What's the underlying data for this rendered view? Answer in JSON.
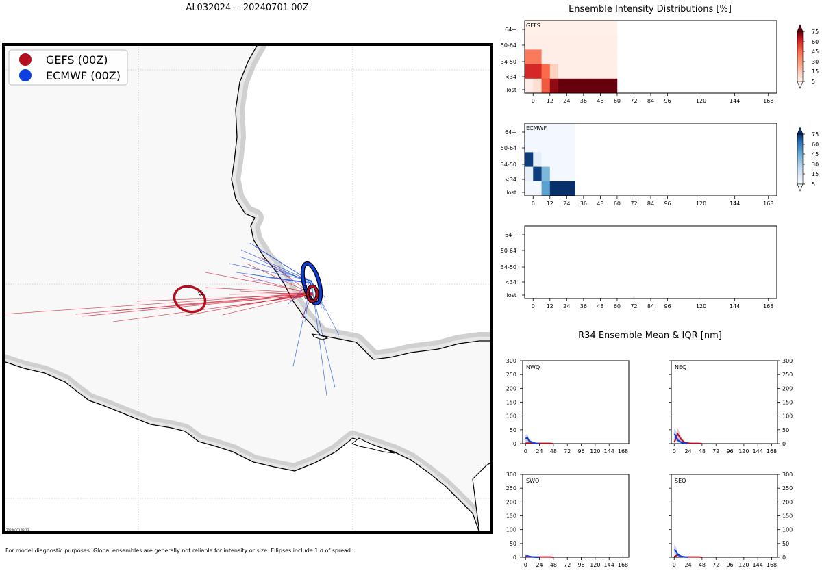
{
  "title": "AL032024 -- 20240701 00Z",
  "footnote": "For model diagnostic purposes. Global ensembles are generally not reliable for intensity or size. Ellipses include 1 σ of spread.",
  "stamp": "20240701 08:13",
  "map": {
    "legend": [
      {
        "label": "GEFS (00Z)",
        "color": "#b2101f"
      },
      {
        "label": "ECMWF (00Z)",
        "color": "#0b3fe0"
      }
    ],
    "ellipse_labels": [
      "12",
      "0",
      "0"
    ],
    "land_color": "#f8f8f8",
    "coast_halo_color": "#d0d0d0"
  },
  "intensity": {
    "title": "Ensemble Intensity Distributions [%]",
    "y_labels": [
      "64+",
      "50-64",
      "34-50",
      "<34",
      "lost"
    ],
    "x_ticks": [
      0,
      12,
      24,
      36,
      48,
      60,
      72,
      84,
      96,
      120,
      144,
      168
    ],
    "colorbar_ticks": [
      5,
      15,
      30,
      45,
      60,
      75
    ],
    "panels": [
      {
        "name": "GEFS",
        "cmap": "reds",
        "leads": [
          0,
          6,
          12,
          18,
          24,
          30,
          36,
          42,
          48,
          54
        ],
        "values": [
          [
            2,
            2,
            2,
            2,
            2,
            2,
            2,
            2,
            2,
            2
          ],
          [
            3,
            3,
            3,
            3,
            3,
            3,
            3,
            3,
            3,
            3
          ],
          [
            45,
            45,
            3,
            3,
            3,
            3,
            3,
            3,
            3,
            3
          ],
          [
            70,
            70,
            50,
            15,
            3,
            3,
            3,
            3,
            3,
            3
          ],
          [
            3,
            10,
            55,
            90,
            100,
            100,
            100,
            100,
            100,
            100
          ]
        ]
      },
      {
        "name": "ECMWF",
        "cmap": "blues",
        "leads": [
          0,
          6,
          12,
          18,
          24
        ],
        "values": [
          [
            2,
            2,
            2,
            2,
            2
          ],
          [
            2,
            2,
            2,
            2,
            2
          ],
          [
            95,
            10,
            2,
            2,
            2
          ],
          [
            8,
            95,
            45,
            2,
            2
          ],
          [
            2,
            2,
            55,
            100,
            100
          ]
        ]
      },
      {
        "name": "",
        "cmap": "none",
        "leads": [],
        "values": []
      }
    ]
  },
  "chart_data": [
    {
      "type": "heatmap",
      "title": "Ensemble Intensity Distributions [%] - GEFS",
      "x_label": "forecast hour",
      "y_categories": [
        "64+",
        "50-64",
        "34-50",
        "<34",
        "lost"
      ],
      "note": "see intensity.panels[0]"
    },
    {
      "type": "line",
      "title": "R34 Ensemble Mean & IQR [nm]",
      "x_ticks": [
        0,
        24,
        48,
        72,
        96,
        120,
        144,
        168
      ],
      "ylim": [
        0,
        300
      ],
      "y_ticks": [
        0,
        50,
        100,
        150,
        200,
        250,
        300
      ],
      "panels": [
        {
          "name": "NWQ",
          "series": [
            {
              "name": "GEFS",
              "color": "#b2101f",
              "x": [
                0,
                6,
                12,
                18,
                24,
                30,
                36,
                42,
                48
              ],
              "y": [
                2,
                2,
                2,
                1,
                1,
                1,
                1,
                1,
                0
              ]
            },
            {
              "name": "ECMWF",
              "color": "#0b3fe0",
              "x": [
                0,
                3,
                6,
                12,
                18,
                24
              ],
              "y": [
                18,
                22,
                10,
                4,
                1,
                0
              ]
            }
          ]
        },
        {
          "name": "NEQ",
          "series": [
            {
              "name": "GEFS",
              "color": "#b2101f",
              "x": [
                0,
                6,
                12,
                18,
                24,
                30,
                36,
                42,
                48
              ],
              "y": [
                5,
                35,
                15,
                4,
                2,
                1,
                1,
                1,
                0
              ]
            },
            {
              "name": "ECMWF",
              "color": "#0b3fe0",
              "x": [
                0,
                3,
                6,
                12,
                18,
                24
              ],
              "y": [
                35,
                28,
                12,
                5,
                1,
                0
              ]
            }
          ]
        },
        {
          "name": "SWQ",
          "series": [
            {
              "name": "GEFS",
              "color": "#b2101f",
              "x": [
                0,
                6,
                12,
                18,
                24,
                30,
                36,
                42,
                48
              ],
              "y": [
                1,
                1,
                1,
                1,
                1,
                1,
                1,
                1,
                0
              ]
            },
            {
              "name": "ECMWF",
              "color": "#0b3fe0",
              "x": [
                0,
                3,
                6,
                12,
                18,
                24
              ],
              "y": [
                4,
                5,
                3,
                1,
                0,
                0
              ]
            }
          ]
        },
        {
          "name": "SEQ",
          "series": [
            {
              "name": "GEFS",
              "color": "#b2101f",
              "x": [
                0,
                6,
                12,
                18,
                24,
                30,
                36,
                42,
                48
              ],
              "y": [
                2,
                8,
                3,
                1,
                1,
                1,
                1,
                1,
                0
              ]
            },
            {
              "name": "ECMWF",
              "color": "#0b3fe0",
              "x": [
                0,
                3,
                6,
                12,
                18,
                24
              ],
              "y": [
                28,
                22,
                10,
                3,
                1,
                0
              ]
            }
          ]
        }
      ]
    }
  ],
  "r34": {
    "title": "R34 Ensemble Mean & IQR [nm]"
  }
}
